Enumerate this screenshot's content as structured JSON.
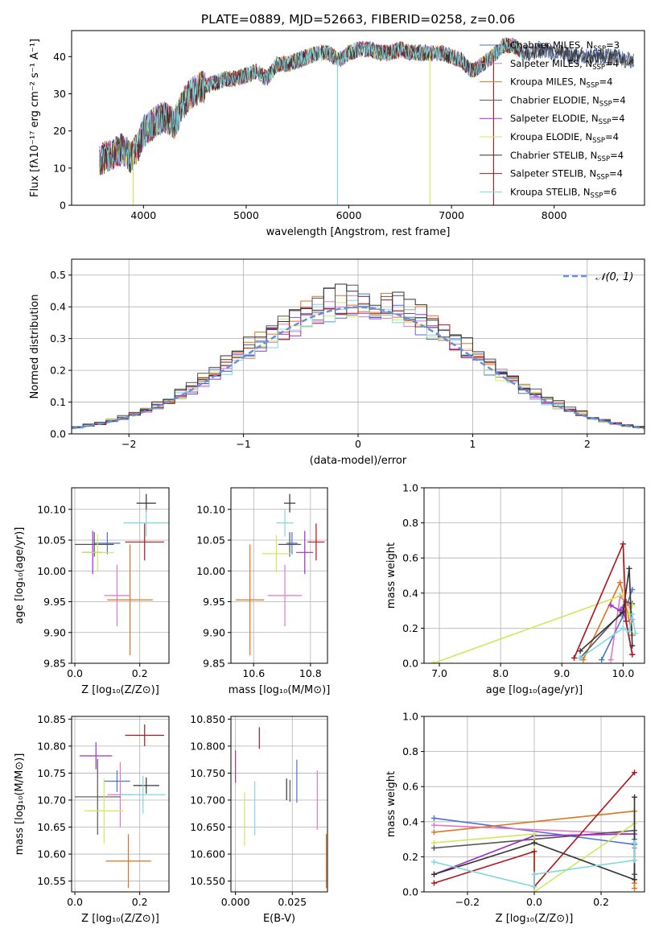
{
  "colors": [
    "#4c72d6",
    "#e377c2",
    "#e0731f",
    "#555555",
    "#9b30c8",
    "#cfe85a",
    "#333333",
    "#b0141a",
    "#7fd8e0"
  ],
  "legend_labels": [
    {
      "main": "Chabrier MILES, N",
      "sub": "SSP",
      "tail": "=3"
    },
    {
      "main": "Salpeter MILES, N",
      "sub": "SSP",
      "tail": "=4"
    },
    {
      "main": "Kroupa MILES, N",
      "sub": "SSP",
      "tail": "=4"
    },
    {
      "main": "Chabrier ELODIE, N",
      "sub": "SSP",
      "tail": "=4"
    },
    {
      "main": "Salpeter ELODIE, N",
      "sub": "SSP",
      "tail": "=4"
    },
    {
      "main": "Kroupa ELODIE, N",
      "sub": "SSP",
      "tail": "=4"
    },
    {
      "main": "Chabrier STELIB, N",
      "sub": "SSP",
      "tail": "=4"
    },
    {
      "main": "Salpeter STELIB, N",
      "sub": "SSP",
      "tail": "=4"
    },
    {
      "main": "Kroupa STELIB, N",
      "sub": "SSP",
      "tail": "=6"
    }
  ],
  "chart_data": [
    {
      "id": "spectrum",
      "type": "line",
      "title": "PLATE=0889, MJD=52663, FIBERID=0258, z=0.06",
      "xlabel": "wavelength [Angstrom, rest frame]",
      "ylabel": "Flux [fλ10⁻¹⁷ erg cm⁻² s⁻¹ A⁻¹]",
      "xlim": [
        3300,
        8880
      ],
      "ylim": [
        0,
        47
      ],
      "xticks": [
        4000,
        5000,
        6000,
        7000,
        8000
      ],
      "yticks": [
        0,
        10,
        20,
        30,
        40
      ],
      "grid": false,
      "legend": "upper-right",
      "envelope": [
        [
          3570,
          12
        ],
        [
          3700,
          14
        ],
        [
          3800,
          15
        ],
        [
          3880,
          13
        ],
        [
          3950,
          16
        ],
        [
          4000,
          20
        ],
        [
          4100,
          22
        ],
        [
          4200,
          24
        ],
        [
          4300,
          22
        ],
        [
          4400,
          28
        ],
        [
          4500,
          31
        ],
        [
          4600,
          32
        ],
        [
          4700,
          33
        ],
        [
          4800,
          34
        ],
        [
          4900,
          34
        ],
        [
          5000,
          35
        ],
        [
          5100,
          36
        ],
        [
          5200,
          34
        ],
        [
          5300,
          38
        ],
        [
          5400,
          38
        ],
        [
          5500,
          39
        ],
        [
          5600,
          40
        ],
        [
          5700,
          41
        ],
        [
          5800,
          41
        ],
        [
          5900,
          39
        ],
        [
          6000,
          41
        ],
        [
          6100,
          42
        ],
        [
          6200,
          42
        ],
        [
          6300,
          41
        ],
        [
          6400,
          41
        ],
        [
          6500,
          42
        ],
        [
          6600,
          41
        ],
        [
          6700,
          41
        ],
        [
          6800,
          41
        ],
        [
          6900,
          41
        ],
        [
          7000,
          40
        ],
        [
          7100,
          39
        ],
        [
          7200,
          36
        ],
        [
          7300,
          38
        ],
        [
          7400,
          40
        ],
        [
          7500,
          43
        ],
        [
          7600,
          43
        ],
        [
          7700,
          41
        ],
        [
          7800,
          41
        ],
        [
          7900,
          42
        ],
        [
          8000,
          41
        ],
        [
          8100,
          41
        ],
        [
          8200,
          40
        ],
        [
          8300,
          40
        ],
        [
          8400,
          40
        ],
        [
          8500,
          40
        ],
        [
          8600,
          40
        ],
        [
          8700,
          39
        ],
        [
          8780,
          39
        ]
      ],
      "series_extent": [
        [
          3570,
          8780
        ],
        [
          3570,
          7700
        ],
        [
          3570,
          7700
        ],
        [
          3570,
          8780
        ],
        [
          3570,
          7700
        ],
        [
          3570,
          7700
        ],
        [
          3570,
          8780
        ],
        [
          3570,
          7700
        ],
        [
          3570,
          7700
        ]
      ]
    },
    {
      "id": "residual-hist",
      "type": "step",
      "xlabel": "(data-model)/error",
      "ylabel": "Normed distribution",
      "xlim": [
        -2.5,
        2.5
      ],
      "ylim": [
        0,
        0.55
      ],
      "xticks": [
        -2,
        -1,
        0,
        1,
        2
      ],
      "yticks": [
        0,
        0.1,
        0.2,
        0.3,
        0.4,
        0.5
      ],
      "grid": true,
      "legend": "upper-right",
      "reference": {
        "label": "𝒩(0, 1)",
        "mean": 0,
        "sigma": 1,
        "color": "#6a8fdc"
      },
      "bin_width": 0.1,
      "series_amplitude": [
        0.4,
        0.41,
        0.42,
        0.43,
        0.4,
        0.41,
        0.44,
        0.41,
        0.4
      ]
    },
    {
      "id": "age-vs-Z",
      "type": "errorbar",
      "xlabel": "Z [log₁₀(Z/Z⊙)]",
      "ylabel": "age  [log₁₀(age/yr)]",
      "xlim": [
        -0.01,
        0.29
      ],
      "ylim": [
        9.85,
        10.135
      ],
      "xticks": [
        0.0,
        0.2
      ],
      "yticks": [
        9.85,
        9.9,
        9.95,
        10.0,
        10.05,
        10.1
      ],
      "grid": true,
      "points": [
        {
          "x": 0.1,
          "y": 10.045,
          "xerr": 0.04,
          "yerr": 0.018,
          "c": 0
        },
        {
          "x": 0.13,
          "y": 9.96,
          "xerr": 0.04,
          "yerr": 0.05,
          "c": 1
        },
        {
          "x": 0.17,
          "y": 9.953,
          "xerr": 0.07,
          "yerr": 0.09,
          "c": 2
        },
        {
          "x": 0.06,
          "y": 10.043,
          "xerr": 0.06,
          "yerr": 0.02,
          "c": 3
        },
        {
          "x": 0.055,
          "y": 10.03,
          "xerr": 0.03,
          "yerr": 0.035,
          "c": 4
        },
        {
          "x": 0.07,
          "y": 10.03,
          "xerr": 0.05,
          "yerr": 0.03,
          "c": 5
        },
        {
          "x": 0.22,
          "y": 10.11,
          "xerr": 0.03,
          "yerr": 0.015,
          "c": 6
        },
        {
          "x": 0.215,
          "y": 10.047,
          "xerr": 0.06,
          "yerr": 0.03,
          "c": 7
        },
        {
          "x": 0.22,
          "y": 10.078,
          "xerr": 0.07,
          "yerr": 0.022,
          "c": 8
        }
      ]
    },
    {
      "id": "age-vs-mass",
      "type": "errorbar",
      "xlabel": "mass [log₁₀(M/M⊙)]",
      "ylabel": "",
      "xlim": [
        10.52,
        10.86
      ],
      "ylim": [
        9.85,
        10.135
      ],
      "xticks": [
        10.6,
        10.8
      ],
      "yticks": [
        9.85,
        9.9,
        9.95,
        10.0,
        10.05,
        10.1
      ],
      "grid": true,
      "points": [
        {
          "x": 10.735,
          "y": 10.045,
          "xerr": 0.02,
          "yerr": 0.018,
          "c": 0
        },
        {
          "x": 10.71,
          "y": 9.96,
          "xerr": 0.06,
          "yerr": 0.05,
          "c": 1
        },
        {
          "x": 10.587,
          "y": 9.953,
          "xerr": 0.05,
          "yerr": 0.09,
          "c": 2
        },
        {
          "x": 10.727,
          "y": 10.043,
          "xerr": 0.04,
          "yerr": 0.02,
          "c": 3
        },
        {
          "x": 10.78,
          "y": 10.03,
          "xerr": 0.03,
          "yerr": 0.035,
          "c": 4
        },
        {
          "x": 10.68,
          "y": 10.028,
          "xerr": 0.05,
          "yerr": 0.03,
          "c": 5
        },
        {
          "x": 10.727,
          "y": 10.11,
          "xerr": 0.02,
          "yerr": 0.015,
          "c": 6
        },
        {
          "x": 10.82,
          "y": 10.047,
          "xerr": 0.03,
          "yerr": 0.03,
          "c": 7
        },
        {
          "x": 10.71,
          "y": 10.078,
          "xerr": 0.03,
          "yerr": 0.022,
          "c": 8
        }
      ]
    },
    {
      "id": "weight-vs-age",
      "type": "line",
      "xlabel": "age  [log₁₀(age/yr)]",
      "ylabel": "mass weight",
      "xlim": [
        6.75,
        10.35
      ],
      "ylim": [
        0,
        1
      ],
      "xticks": [
        7,
        8,
        9,
        10
      ],
      "yticks": [
        0,
        0.2,
        0.4,
        0.6,
        0.8,
        1.0
      ],
      "grid": true,
      "series": [
        {
          "c": 0,
          "x": [
            9.65,
            10.0,
            10.15
          ],
          "y": [
            0.02,
            0.27,
            0.42
          ]
        },
        {
          "c": 1,
          "x": [
            9.8,
            9.95,
            10.1,
            10.15
          ],
          "y": [
            0.02,
            0.38,
            0.33,
            0.25
          ]
        },
        {
          "c": 2,
          "x": [
            9.35,
            9.95,
            10.05,
            10.15
          ],
          "y": [
            0.02,
            0.46,
            0.33,
            0.16
          ]
        },
        {
          "c": 3,
          "x": [
            9.3,
            10.0,
            10.05,
            10.15
          ],
          "y": [
            0.03,
            0.3,
            0.35,
            0.34
          ]
        },
        {
          "c": 4,
          "x": [
            9.8,
            9.95,
            10.0,
            10.15
          ],
          "y": [
            0.33,
            0.3,
            0.32,
            0.05
          ]
        },
        {
          "c": 5,
          "x": [
            6.9,
            10.0,
            10.1,
            10.15
          ],
          "y": [
            0.0,
            0.39,
            0.28,
            0.33
          ]
        },
        {
          "c": 6,
          "x": [
            9.3,
            10.0,
            10.1,
            10.15
          ],
          "y": [
            0.07,
            0.29,
            0.54,
            0.1
          ]
        },
        {
          "c": 7,
          "x": [
            9.2,
            10.0,
            10.05,
            10.15
          ],
          "y": [
            0.03,
            0.68,
            0.24,
            0.05
          ]
        },
        {
          "c": 8,
          "x": [
            9.3,
            10.0,
            10.1,
            10.15,
            10.2
          ],
          "y": [
            0.03,
            0.2,
            0.18,
            0.28,
            0.17
          ]
        }
      ]
    },
    {
      "id": "mass-vs-Z",
      "type": "errorbar",
      "xlabel": "Z [log₁₀(Z/Z⊙)]",
      "ylabel": "mass [log₁₀(M/M⊙)]",
      "xlim": [
        -0.01,
        0.29
      ],
      "ylim": [
        10.53,
        10.855
      ],
      "xticks": [
        0.0,
        0.2
      ],
      "yticks": [
        10.55,
        10.6,
        10.65,
        10.7,
        10.75,
        10.8,
        10.85
      ],
      "grid": true,
      "points": [
        {
          "x": 0.13,
          "y": 10.735,
          "xerr": 0.04,
          "yerr": 0.02,
          "c": 0
        },
        {
          "x": 0.14,
          "y": 10.71,
          "xerr": 0.04,
          "yerr": 0.06,
          "c": 1
        },
        {
          "x": 0.165,
          "y": 10.587,
          "xerr": 0.07,
          "yerr": 0.05,
          "c": 2
        },
        {
          "x": 0.07,
          "y": 10.706,
          "xerr": 0.07,
          "yerr": 0.07,
          "c": 3
        },
        {
          "x": 0.065,
          "y": 10.782,
          "xerr": 0.05,
          "yerr": 0.025,
          "c": 4
        },
        {
          "x": 0.09,
          "y": 10.68,
          "xerr": 0.06,
          "yerr": 0.06,
          "c": 5
        },
        {
          "x": 0.22,
          "y": 10.727,
          "xerr": 0.04,
          "yerr": 0.015,
          "c": 6
        },
        {
          "x": 0.215,
          "y": 10.82,
          "xerr": 0.06,
          "yerr": 0.02,
          "c": 7
        },
        {
          "x": 0.21,
          "y": 10.71,
          "xerr": 0.07,
          "yerr": 0.035,
          "c": 8
        }
      ]
    },
    {
      "id": "mass-vs-ebv",
      "type": "errorbar",
      "xlabel": "E(B-V)",
      "ylabel": "",
      "xlim": [
        -0.002,
        0.0405
      ],
      "ylim": [
        10.53,
        10.855
      ],
      "xticks": [
        0.0,
        0.025
      ],
      "yticks": [
        10.55,
        10.6,
        10.65,
        10.7,
        10.75,
        10.8,
        10.85
      ],
      "grid": true,
      "points": [
        {
          "x": 0.027,
          "y": 10.735,
          "xerr": 0.0,
          "yerr": 0.04,
          "c": 0
        },
        {
          "x": 0.036,
          "y": 10.7,
          "xerr": 0.0,
          "yerr": 0.055,
          "c": 1
        },
        {
          "x": 0.04,
          "y": 10.587,
          "xerr": 0.0,
          "yerr": 0.05,
          "c": 2
        },
        {
          "x": 0.024,
          "y": 10.717,
          "xerr": 0.0,
          "yerr": 0.02,
          "c": 3
        },
        {
          "x": 0.0,
          "y": 10.762,
          "xerr": 0.0,
          "yerr": 0.03,
          "c": 4
        },
        {
          "x": 0.004,
          "y": 10.665,
          "xerr": 0.0,
          "yerr": 0.05,
          "c": 5
        },
        {
          "x": 0.0225,
          "y": 10.72,
          "xerr": 0.0,
          "yerr": 0.02,
          "c": 6
        },
        {
          "x": 0.0105,
          "y": 10.815,
          "xerr": 0.0,
          "yerr": 0.02,
          "c": 7
        },
        {
          "x": 0.0085,
          "y": 10.685,
          "xerr": 0.0,
          "yerr": 0.05,
          "c": 8
        }
      ]
    },
    {
      "id": "weight-vs-Z",
      "type": "line",
      "xlabel": "Z [log₁₀(Z/Z⊙)]",
      "ylabel": "mass weight",
      "xlim": [
        -0.33,
        0.33
      ],
      "ylim": [
        0,
        1
      ],
      "xticks": [
        -0.2,
        0.0,
        0.2
      ],
      "yticks": [
        0,
        0.2,
        0.4,
        0.6,
        0.8,
        1.0
      ],
      "grid": true,
      "series": [
        {
          "c": 0,
          "x": [
            -0.3,
            0.3,
            0.3
          ],
          "y": [
            0.42,
            0.27,
            0.3
          ]
        },
        {
          "c": 1,
          "x": [
            -0.3,
            0.3,
            0.3
          ],
          "y": [
            0.38,
            0.33,
            0.25
          ]
        },
        {
          "c": 2,
          "x": [
            -0.3,
            0.3,
            0.3,
            0.3
          ],
          "y": [
            0.34,
            0.46,
            0.02,
            0.05
          ]
        },
        {
          "c": 3,
          "x": [
            -0.3,
            0.0,
            0.3,
            0.3
          ],
          "y": [
            0.25,
            0.3,
            0.35,
            0.1
          ]
        },
        {
          "c": 4,
          "x": [
            -0.3,
            0.0,
            0.3
          ],
          "y": [
            0.1,
            0.32,
            0.33
          ]
        },
        {
          "c": 5,
          "x": [
            -0.3,
            0.0,
            0.0,
            0.3
          ],
          "y": [
            0.28,
            0.33,
            0.0,
            0.39
          ]
        },
        {
          "c": 6,
          "x": [
            -0.3,
            0.0,
            0.3,
            0.3
          ],
          "y": [
            0.1,
            0.28,
            0.07,
            0.54
          ]
        },
        {
          "c": 7,
          "x": [
            -0.3,
            0.0,
            0.0,
            0.3
          ],
          "y": [
            0.05,
            0.23,
            0.03,
            0.68
          ]
        },
        {
          "c": 8,
          "x": [
            -0.3,
            0.0,
            0.0,
            0.3,
            0.3
          ],
          "y": [
            0.17,
            0.03,
            0.1,
            0.18,
            0.28
          ]
        }
      ]
    }
  ]
}
